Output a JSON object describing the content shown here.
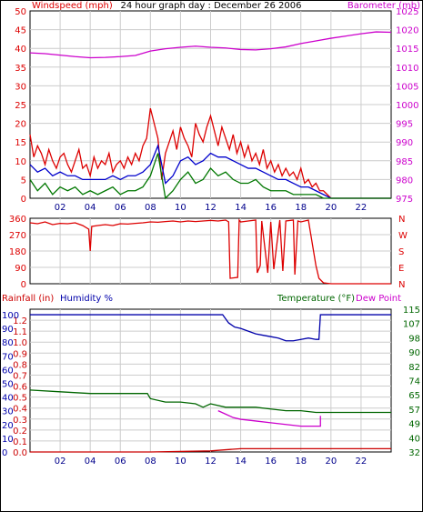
{
  "header": {
    "title": "24 hour graph day : December 26 2006",
    "left_label": "Windspeed (mph)",
    "right_label": "Barometer (mb)"
  },
  "colors": {
    "wind": "#dd0000",
    "wind_avg": "#0000cc",
    "wind_dir_gust": "#007700",
    "barometer": "#cc00cc",
    "direction": "#dd0000",
    "rainfall": "#cc0000",
    "humidity": "#0000aa",
    "temperature": "#006600",
    "dewpoint": "#cc00cc",
    "grid": "#cccccc"
  },
  "chart_data": [
    {
      "type": "line",
      "name": "wind_barometer",
      "title": "24 hour graph day : December 26 2006",
      "ylabel": "Windspeed (mph)",
      "y2label": "Barometer (mb)",
      "x_ticks": [
        "02",
        "04",
        "06",
        "08",
        "10",
        "12",
        "14",
        "16",
        "18",
        "20",
        "22"
      ],
      "xlim": [
        0,
        24
      ],
      "ylim": [
        0,
        50
      ],
      "y_ticks": [
        0,
        5,
        10,
        15,
        20,
        25,
        30,
        35,
        40,
        45,
        50
      ],
      "y2lim": [
        975,
        1025
      ],
      "y2_ticks": [
        975,
        980,
        985,
        990,
        995,
        1000,
        1005,
        1010,
        1015,
        1020,
        1025
      ],
      "series": [
        {
          "key": "gust",
          "x": [
            0,
            0.25,
            0.5,
            0.75,
            1,
            1.25,
            1.5,
            1.75,
            2,
            2.25,
            2.5,
            2.75,
            3,
            3.25,
            3.5,
            3.75,
            4,
            4.25,
            4.5,
            4.75,
            5,
            5.25,
            5.5,
            5.75,
            6,
            6.25,
            6.5,
            6.75,
            7,
            7.25,
            7.5,
            7.75,
            8,
            8.25,
            8.5,
            8.75,
            9,
            9.25,
            9.5,
            9.75,
            10,
            10.25,
            10.5,
            10.75,
            11,
            11.25,
            11.5,
            11.75,
            12,
            12.25,
            12.5,
            12.75,
            13,
            13.25,
            13.5,
            13.75,
            14,
            14.25,
            14.5,
            14.75,
            15,
            15.25,
            15.5,
            15.75,
            16,
            16.25,
            16.5,
            16.75,
            17,
            17.25,
            17.5,
            17.75,
            18,
            18.25,
            18.5,
            18.75,
            19,
            19.25,
            19.5,
            19.75,
            20,
            21,
            22,
            23,
            24
          ],
          "values": [
            17,
            11,
            14,
            12,
            9,
            13,
            10,
            8,
            11,
            12,
            9,
            7,
            10,
            13,
            8,
            9,
            6,
            11,
            8,
            10,
            9,
            12,
            7,
            9,
            10,
            8,
            11,
            9,
            12,
            10,
            14,
            16,
            24,
            20,
            16,
            5,
            12,
            15,
            18,
            13,
            19,
            16,
            14,
            11,
            20,
            17,
            15,
            19,
            22,
            18,
            14,
            19,
            16,
            13,
            17,
            12,
            15,
            11,
            14,
            10,
            12,
            9,
            13,
            8,
            10,
            7,
            9,
            6,
            8,
            6,
            7,
            5,
            8,
            4,
            5,
            3,
            4,
            2,
            2,
            1,
            0,
            0,
            0,
            0,
            0
          ]
        },
        {
          "key": "average",
          "x": [
            0,
            0.5,
            1,
            1.5,
            2,
            2.5,
            3,
            3.5,
            4,
            4.5,
            5,
            5.5,
            6,
            6.5,
            7,
            7.5,
            8,
            8.5,
            9,
            9.5,
            10,
            10.5,
            11,
            11.5,
            12,
            12.5,
            13,
            13.5,
            14,
            14.5,
            15,
            15.5,
            16,
            16.5,
            17,
            17.5,
            18,
            18.5,
            19,
            19.5,
            20,
            22,
            24
          ],
          "values": [
            9,
            7,
            8,
            6,
            7,
            6,
            6,
            5,
            5,
            5,
            5,
            6,
            5,
            6,
            6,
            7,
            9,
            14,
            4,
            6,
            10,
            11,
            9,
            10,
            12,
            11,
            11,
            10,
            9,
            8,
            8,
            7,
            6,
            5,
            5,
            4,
            3,
            3,
            2,
            1,
            0,
            0,
            0
          ]
        },
        {
          "key": "direction_gust",
          "x": [
            0,
            0.5,
            1,
            1.5,
            2,
            2.5,
            3,
            3.5,
            4,
            4.5,
            5,
            5.5,
            6,
            6.5,
            7,
            7.5,
            8,
            8.5,
            9,
            9.5,
            10,
            10.5,
            11,
            11.5,
            12,
            12.5,
            13,
            13.5,
            14,
            14.5,
            15,
            15.5,
            16,
            16.5,
            17,
            17.5,
            18,
            18.5,
            19,
            19.5,
            20,
            22,
            24
          ],
          "values": [
            5,
            2,
            4,
            1,
            3,
            2,
            3,
            1,
            2,
            1,
            2,
            3,
            1,
            2,
            2,
            3,
            6,
            12,
            0,
            2,
            5,
            7,
            4,
            5,
            8,
            6,
            7,
            5,
            4,
            4,
            5,
            3,
            2,
            2,
            2,
            1,
            1,
            1,
            1,
            0,
            0,
            0,
            0
          ]
        },
        {
          "key": "barometer",
          "axis": "y2",
          "x": [
            0,
            1,
            2,
            3,
            4,
            5,
            6,
            7,
            8,
            9,
            10,
            11,
            12,
            13,
            14,
            15,
            16,
            17,
            18,
            19,
            20,
            21,
            22,
            23,
            24
          ],
          "values": [
            1013.8,
            1013.6,
            1013.2,
            1012.8,
            1012.5,
            1012.6,
            1012.8,
            1013.1,
            1014.3,
            1014.9,
            1015.3,
            1015.6,
            1015.3,
            1015.1,
            1014.7,
            1014.6,
            1014.9,
            1015.4,
            1016.3,
            1017.0,
            1017.7,
            1018.3,
            1018.9,
            1019.4,
            1019.3
          ]
        }
      ]
    },
    {
      "type": "line",
      "name": "wind_direction",
      "ylabel": "",
      "xlim": [
        0,
        24
      ],
      "ylim": [
        0,
        360
      ],
      "y_ticks": [
        0,
        90,
        180,
        270,
        360
      ],
      "y_ticks_right": [
        "N",
        "E",
        "S",
        "W",
        "N"
      ],
      "x_ticks": [
        "02",
        "04",
        "06",
        "08",
        "10",
        "12",
        "14",
        "16",
        "18",
        "20",
        "22"
      ],
      "series": [
        {
          "key": "direction",
          "x": [
            0,
            0.5,
            1,
            1.5,
            2,
            2.5,
            3,
            3.5,
            3.9,
            4,
            4.1,
            4.5,
            5,
            5.5,
            6,
            6.5,
            7,
            7.5,
            8,
            8.5,
            9,
            9.5,
            10,
            10.5,
            11,
            11.5,
            12,
            12.5,
            13,
            13.2,
            13.3,
            13.8,
            13.9,
            14,
            14.5,
            15,
            15.1,
            15.3,
            15.4,
            15.8,
            16,
            16.2,
            16.6,
            16.8,
            17,
            17.5,
            17.6,
            17.8,
            18,
            18.5,
            19,
            19.2,
            19.5,
            20,
            21,
            22,
            23,
            24
          ],
          "values": [
            335,
            330,
            340,
            325,
            332,
            330,
            335,
            320,
            300,
            180,
            315,
            320,
            325,
            320,
            330,
            328,
            332,
            335,
            340,
            338,
            342,
            345,
            340,
            345,
            342,
            345,
            348,
            345,
            350,
            340,
            30,
            35,
            350,
            340,
            345,
            350,
            60,
            100,
            345,
            60,
            340,
            80,
            350,
            70,
            345,
            350,
            50,
            345,
            340,
            350,
            100,
            30,
            5,
            0,
            0,
            0,
            0,
            0
          ]
        }
      ]
    },
    {
      "type": "line",
      "name": "rain_humidity_temperature",
      "ylabel": "Rainfall (in)",
      "y_labels_extra": [
        "Humidity %"
      ],
      "y2label": "Temperature (°F)",
      "y2label_extra": "Dew Point",
      "xlim": [
        0,
        24
      ],
      "ylim": [
        0,
        1.3
      ],
      "y_ticks": [
        "0.0",
        "0.1",
        "0.2",
        "0.3",
        "0.4",
        "0.5",
        "0.6",
        "0.7",
        "0.8",
        "0.9",
        "1.0",
        "1.1",
        "1.2"
      ],
      "humidity_ticks": [
        "0",
        "10",
        "20",
        "30",
        "40",
        "50",
        "60",
        "70",
        "80",
        "90",
        "100"
      ],
      "y2lim": [
        32,
        115
      ],
      "y2_ticks": [
        "32",
        "40",
        "49",
        "57",
        "65",
        "74",
        "82",
        "90",
        "98",
        "107",
        "115"
      ],
      "x_ticks": [
        "02",
        "04",
        "06",
        "08",
        "10",
        "12",
        "14",
        "16",
        "18",
        "20",
        "22"
      ],
      "series": [
        {
          "key": "rainfall",
          "x": [
            0,
            8,
            12,
            13,
            14,
            18,
            19,
            20,
            24
          ],
          "values": [
            0.0,
            0.0,
            0.01,
            0.02,
            0.03,
            0.03,
            0.03,
            0.03,
            0.03
          ]
        },
        {
          "key": "humidity",
          "axis": "humidity",
          "x": [
            0,
            12,
            12.8,
            13.2,
            13.6,
            14,
            14.5,
            15,
            15.5,
            16,
            16.5,
            17,
            17.5,
            18,
            18.5,
            19,
            19.2,
            19.3,
            24
          ],
          "values": [
            100,
            100,
            100,
            94,
            91,
            90,
            88,
            86,
            85,
            84,
            83,
            81,
            81,
            82,
            83,
            82,
            82,
            100,
            100
          ]
        },
        {
          "key": "temperature",
          "axis": "y2",
          "x": [
            0,
            2,
            4,
            6,
            7.8,
            8,
            9,
            10,
            11,
            11.5,
            12,
            13,
            14,
            15,
            16,
            17,
            18,
            19,
            20,
            24
          ],
          "values": [
            68,
            67,
            66,
            66,
            66,
            63,
            61,
            61,
            60,
            58,
            60,
            58,
            58,
            58,
            57,
            56,
            56,
            55,
            55,
            55
          ]
        },
        {
          "key": "dewpoint",
          "axis": "y2",
          "x": [
            12.5,
            13,
            13.5,
            14,
            15,
            16,
            17,
            18,
            19,
            19.3,
            19.3
          ],
          "values": [
            56,
            54,
            52,
            51,
            50,
            49,
            48,
            47,
            47,
            47,
            53
          ]
        }
      ]
    }
  ]
}
